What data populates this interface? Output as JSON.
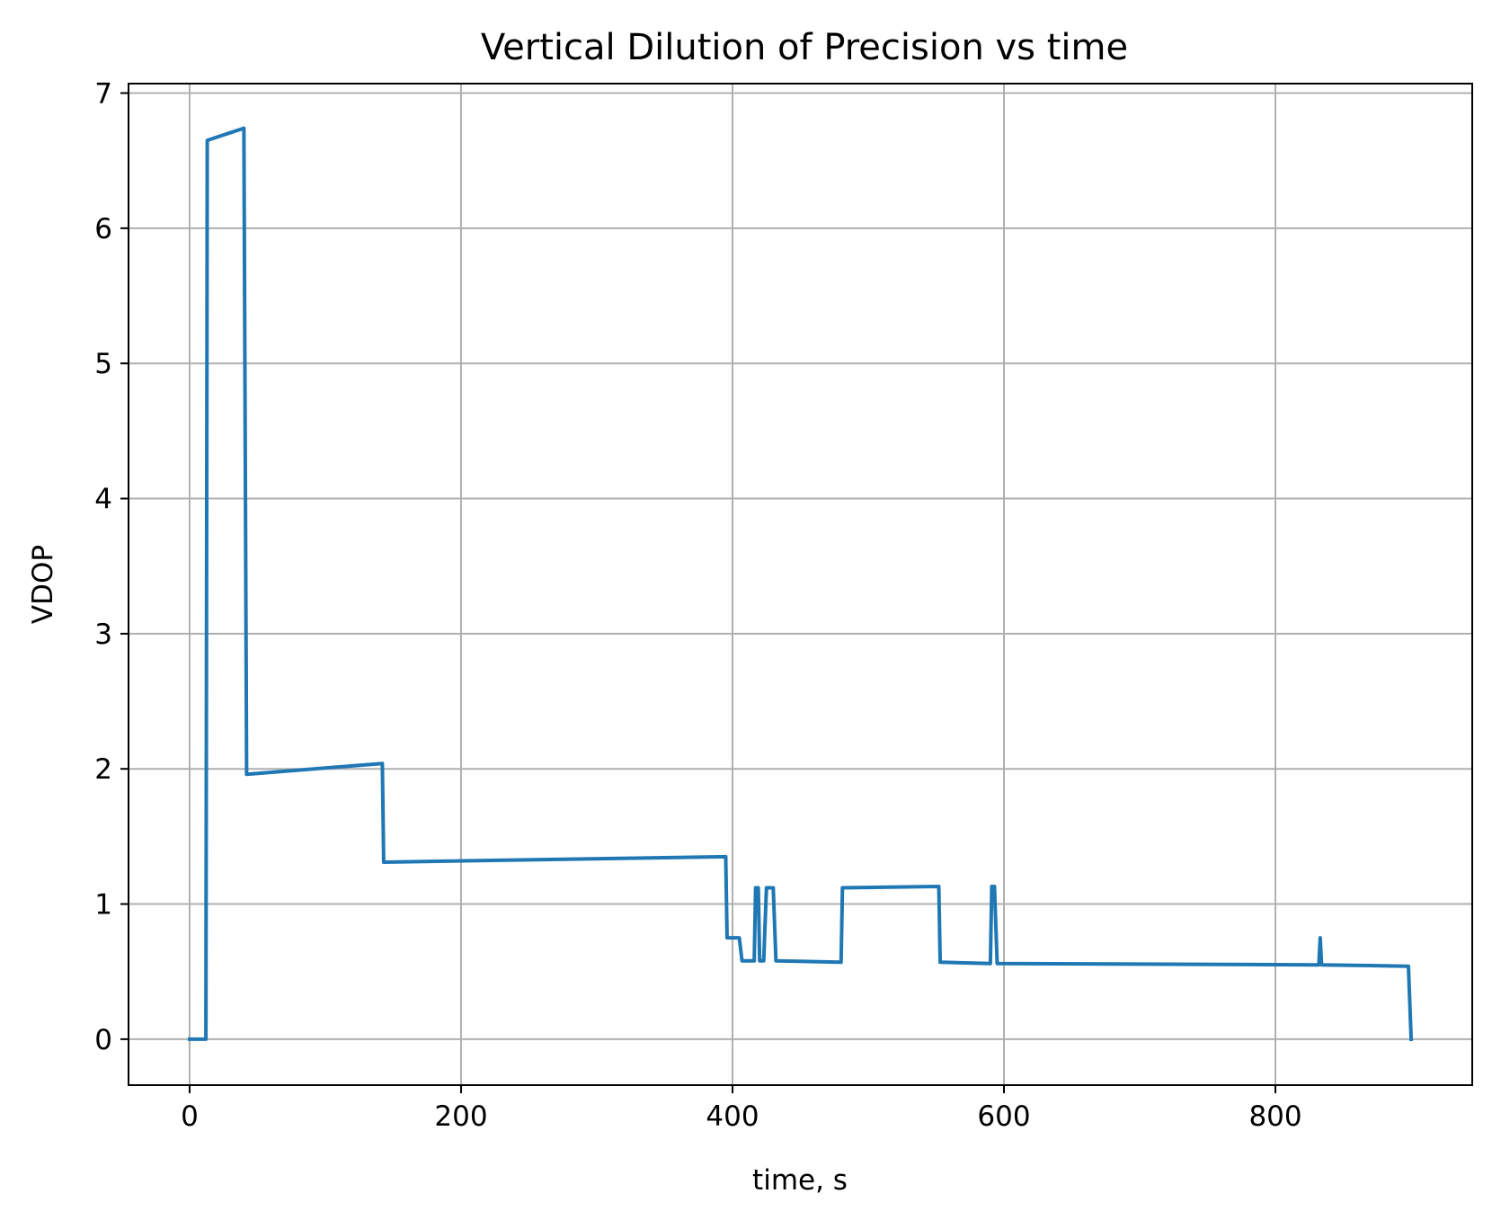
{
  "chart_data": {
    "type": "line",
    "title": "Vertical Dilution of Precision vs time",
    "xlabel": "time, s",
    "ylabel": "VDOP",
    "xlim": [
      -45,
      945
    ],
    "ylim": [
      -0.34,
      7.07
    ],
    "xticks": [
      0,
      200,
      400,
      600,
      800
    ],
    "yticks": [
      0,
      1,
      2,
      3,
      4,
      5,
      6,
      7
    ],
    "grid": true,
    "series": [
      {
        "color": "#1f77b4",
        "x": [
          0,
          12,
          13,
          40,
          42,
          142,
          143,
          395,
          396,
          405,
          407,
          416,
          417,
          419,
          420,
          423,
          425,
          430,
          432,
          480,
          481,
          552,
          553,
          590,
          591,
          593,
          595,
          832,
          833,
          834,
          898,
          900
        ],
        "y": [
          0.0,
          0.0,
          6.65,
          6.74,
          1.96,
          2.04,
          1.31,
          1.35,
          0.75,
          0.75,
          0.58,
          0.58,
          1.12,
          1.12,
          0.58,
          0.58,
          1.12,
          1.12,
          0.58,
          0.57,
          1.12,
          1.13,
          0.57,
          0.56,
          1.13,
          1.13,
          0.56,
          0.55,
          0.75,
          0.55,
          0.54,
          0.0
        ]
      }
    ]
  }
}
